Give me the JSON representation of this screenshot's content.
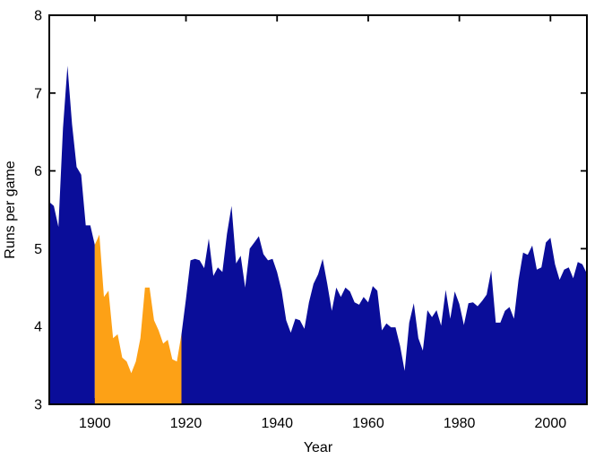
{
  "chart_data": {
    "type": "area",
    "title": "",
    "xlabel": "Year",
    "ylabel": "Runs per game",
    "xlim": [
      1890,
      2008
    ],
    "ylim": [
      3,
      8
    ],
    "x_ticks": [
      1900,
      1920,
      1940,
      1960,
      1980,
      2000
    ],
    "y_ticks": [
      3,
      4,
      5,
      6,
      7,
      8
    ],
    "grid": false,
    "legend_position": "none",
    "baseline_value": 3,
    "colors": {
      "main_area": "#0A0D99",
      "highlight_area": "#FDA116",
      "axis": "#000000",
      "tick_label": "#000000",
      "background": "#FFFFFF"
    },
    "highlight_region": {
      "start_year": 1900,
      "end_year": 1919,
      "color": "#FDA116"
    },
    "series": [
      {
        "name": "runs_per_game",
        "x": [
          1890,
          1891,
          1892,
          1893,
          1894,
          1895,
          1896,
          1897,
          1898,
          1899,
          1900,
          1901,
          1902,
          1903,
          1904,
          1905,
          1906,
          1907,
          1908,
          1909,
          1910,
          1911,
          1912,
          1913,
          1914,
          1915,
          1916,
          1917,
          1918,
          1919,
          1920,
          1921,
          1922,
          1923,
          1924,
          1925,
          1926,
          1927,
          1928,
          1929,
          1930,
          1931,
          1932,
          1933,
          1934,
          1935,
          1936,
          1937,
          1938,
          1939,
          1940,
          1941,
          1942,
          1943,
          1944,
          1945,
          1946,
          1947,
          1948,
          1949,
          1950,
          1951,
          1952,
          1953,
          1954,
          1955,
          1956,
          1957,
          1958,
          1959,
          1960,
          1961,
          1962,
          1963,
          1964,
          1965,
          1966,
          1967,
          1968,
          1969,
          1970,
          1971,
          1972,
          1973,
          1974,
          1975,
          1976,
          1977,
          1978,
          1979,
          1980,
          1981,
          1982,
          1983,
          1984,
          1985,
          1986,
          1987,
          1988,
          1989,
          1990,
          1991,
          1992,
          1993,
          1994,
          1995,
          1996,
          1997,
          1998,
          1999,
          2000,
          2001,
          2002,
          2003,
          2004,
          2005,
          2006,
          2007,
          2008
        ],
        "y": [
          5.6,
          5.55,
          5.28,
          6.55,
          7.35,
          6.6,
          6.05,
          5.95,
          5.3,
          5.3,
          5.05,
          5.18,
          4.38,
          4.46,
          3.85,
          3.9,
          3.6,
          3.55,
          3.4,
          3.55,
          3.85,
          4.5,
          4.5,
          4.08,
          3.95,
          3.78,
          3.83,
          3.58,
          3.55,
          3.9,
          4.35,
          4.85,
          4.87,
          4.85,
          4.75,
          5.13,
          4.65,
          4.76,
          4.7,
          5.19,
          5.55,
          4.81,
          4.91,
          4.5,
          5.0,
          5.08,
          5.16,
          4.93,
          4.85,
          4.87,
          4.7,
          4.46,
          4.08,
          3.92,
          4.1,
          4.08,
          3.97,
          4.31,
          4.55,
          4.67,
          4.87,
          4.55,
          4.2,
          4.5,
          4.38,
          4.5,
          4.45,
          4.31,
          4.28,
          4.38,
          4.31,
          4.52,
          4.46,
          3.95,
          4.04,
          3.99,
          3.99,
          3.75,
          3.43,
          4.05,
          4.3,
          3.85,
          3.69,
          4.21,
          4.12,
          4.21,
          4.01,
          4.47,
          4.1,
          4.45,
          4.29,
          4.02,
          4.3,
          4.31,
          4.26,
          4.33,
          4.41,
          4.72,
          4.05,
          4.05,
          4.2,
          4.25,
          4.1,
          4.6,
          4.95,
          4.92,
          5.04,
          4.73,
          4.76,
          5.08,
          5.14,
          4.8,
          4.6,
          4.73,
          4.76,
          4.62,
          4.83,
          4.8,
          4.68
        ]
      }
    ]
  }
}
